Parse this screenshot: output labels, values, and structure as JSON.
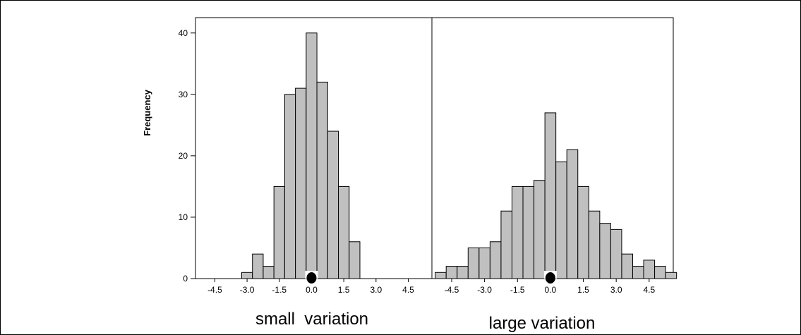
{
  "chart_data": {
    "type": "bar",
    "ylabel": "Frequency",
    "yticks": [
      0,
      10,
      20,
      30,
      40
    ],
    "ylim": [
      0,
      42.5
    ],
    "bar_color": "#c0c0c0",
    "panels": [
      {
        "xlabel": "small  variation",
        "xticks": [
          "-4.5",
          "-3.0",
          "-1.5",
          "0.0",
          "1.5",
          "3.0",
          "4.5"
        ],
        "tick_values": [
          -4.5,
          -3.0,
          -1.5,
          0.0,
          1.5,
          3.0,
          4.5
        ],
        "xlim": [
          -5.4,
          5.6
        ],
        "bin_width": 0.5,
        "bins": [
          {
            "start": -3.25,
            "count": 1
          },
          {
            "start": -2.75,
            "count": 4
          },
          {
            "start": -2.25,
            "count": 2
          },
          {
            "start": -1.75,
            "count": 15
          },
          {
            "start": -1.25,
            "count": 30
          },
          {
            "start": -0.75,
            "count": 31
          },
          {
            "start": -0.25,
            "count": 40
          },
          {
            "start": 0.25,
            "count": 32
          },
          {
            "start": 0.75,
            "count": 24
          },
          {
            "start": 1.25,
            "count": 15
          },
          {
            "start": 1.75,
            "count": 6
          }
        ],
        "marker_x": 0.0
      },
      {
        "xlabel": "large variation",
        "xticks": [
          "-4.5",
          "-3.0",
          "-1.5",
          "0.0",
          "1.5",
          "3.0",
          "4.5"
        ],
        "tick_values": [
          -4.5,
          -3.0,
          -1.5,
          0.0,
          1.5,
          3.0,
          4.5
        ],
        "xlim": [
          -5.4,
          5.6
        ],
        "bin_width": 0.5,
        "bins": [
          {
            "start": -5.25,
            "count": 1
          },
          {
            "start": -4.75,
            "count": 2
          },
          {
            "start": -4.25,
            "count": 2
          },
          {
            "start": -3.75,
            "count": 5
          },
          {
            "start": -3.25,
            "count": 5
          },
          {
            "start": -2.75,
            "count": 6
          },
          {
            "start": -2.25,
            "count": 11
          },
          {
            "start": -1.75,
            "count": 15
          },
          {
            "start": -1.25,
            "count": 15
          },
          {
            "start": -0.75,
            "count": 16
          },
          {
            "start": -0.25,
            "count": 27
          },
          {
            "start": 0.25,
            "count": 19
          },
          {
            "start": 0.75,
            "count": 21
          },
          {
            "start": 1.25,
            "count": 15
          },
          {
            "start": 1.75,
            "count": 11
          },
          {
            "start": 2.25,
            "count": 9
          },
          {
            "start": 2.75,
            "count": 8
          },
          {
            "start": 3.25,
            "count": 4
          },
          {
            "start": 3.75,
            "count": 2
          },
          {
            "start": 4.25,
            "count": 3
          },
          {
            "start": 4.75,
            "count": 2
          },
          {
            "start": 5.25,
            "count": 1
          }
        ],
        "marker_x": 0.0
      }
    ]
  }
}
